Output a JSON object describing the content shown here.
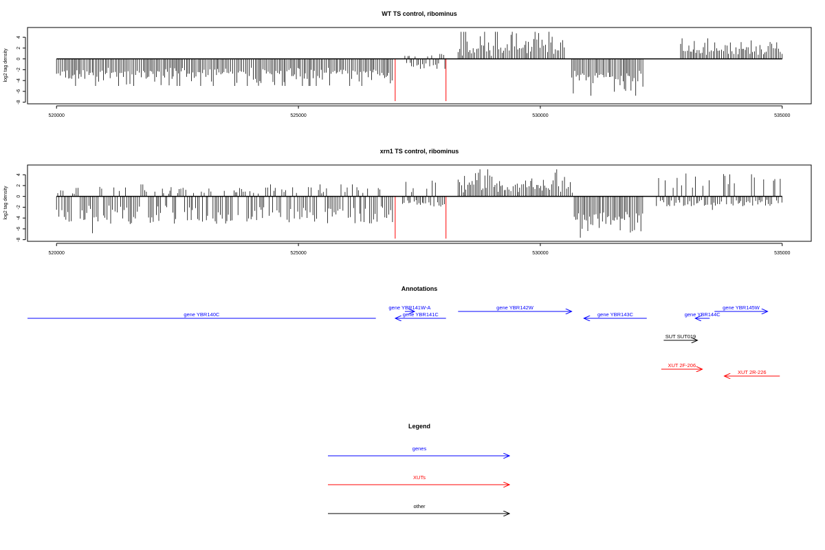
{
  "chart_data": [
    {
      "type": "bar",
      "title": "WT TS control, ribominus",
      "xlabel": "",
      "ylabel": "log2 tag density",
      "xlim": [
        519400,
        535600
      ],
      "ylim": [
        -8.3,
        5.8
      ],
      "yticks": [
        -8,
        -6,
        -4,
        -2,
        0,
        2,
        4
      ],
      "xticks": [
        520000,
        525000,
        530000,
        535000
      ],
      "baseline": [
        520000,
        535000
      ],
      "series": [
        {
          "color": "#000000",
          "segments": [
            {
              "x0": 520000,
              "x1": 526950,
              "min": -5.0,
              "max": -1.5
            },
            {
              "x0": 527200,
              "x1": 528050,
              "min": -2.5,
              "max": 1.2
            },
            {
              "x0": 528300,
              "x1": 530500,
              "min": 0.5,
              "max": 5.0
            },
            {
              "x0": 530650,
              "x1": 532150,
              "min": -6.8,
              "max": -2.0
            },
            {
              "x0": 532900,
              "x1": 535000,
              "min": 0.5,
              "max": 3.8
            }
          ]
        },
        {
          "color": "#ff0000",
          "x": [
            527000,
            528050
          ],
          "values": [
            -7.8,
            -7.8
          ]
        }
      ]
    },
    {
      "type": "bar",
      "title": "xrn1 TS control, ribominus",
      "xlabel": "",
      "ylabel": "log2 tag density",
      "xlim": [
        519400,
        535600
      ],
      "ylim": [
        -8.3,
        5.8
      ],
      "yticks": [
        -8,
        -6,
        -4,
        -2,
        0,
        2,
        4
      ],
      "xticks": [
        520000,
        525000,
        530000,
        535000
      ],
      "baseline": [
        520000,
        535000
      ],
      "series": [
        {
          "color": "#000000",
          "segments": [
            {
              "x0": 520000,
              "x1": 526950,
              "min": -6.8,
              "max": 2.2
            },
            {
              "x0": 527150,
              "x1": 528050,
              "min": -2.5,
              "max": 4.0
            },
            {
              "x0": 528300,
              "x1": 530700,
              "min": 0.5,
              "max": 5.0
            },
            {
              "x0": 530700,
              "x1": 532150,
              "min": -7.8,
              "max": -2.5
            },
            {
              "x0": 532400,
              "x1": 535000,
              "min": -2.5,
              "max": 5.3
            }
          ]
        },
        {
          "color": "#ff0000",
          "x": [
            527000,
            528050
          ],
          "values": [
            -7.8,
            -7.8
          ]
        }
      ]
    }
  ],
  "annotations": {
    "title": "Annotations",
    "items": [
      {
        "label": "gene YBR140C",
        "color": "#0000ff",
        "x0": 519400,
        "x1": 526600,
        "direction": "none",
        "row": 2
      },
      {
        "label": "gene YBR141W-A",
        "color": "#0000ff",
        "x0": 527200,
        "x1": 527400,
        "direction": "right",
        "row": 1
      },
      {
        "label": "gene YBR141C",
        "color": "#0000ff",
        "x0": 527000,
        "x1": 528050,
        "direction": "left",
        "row": 2
      },
      {
        "label": "gene YBR142W",
        "color": "#0000ff",
        "x0": 528300,
        "x1": 530650,
        "direction": "right",
        "row": 1
      },
      {
        "label": "gene YBR143C",
        "color": "#0000ff",
        "x0": 530900,
        "x1": 532200,
        "direction": "left",
        "row": 2
      },
      {
        "label": "gene YBR144C",
        "color": "#0000ff",
        "x0": 533200,
        "x1": 533500,
        "direction": "left",
        "row": 2
      },
      {
        "label": "gene YBR145W",
        "color": "#0000ff",
        "x0": 533600,
        "x1": 534700,
        "direction": "right",
        "row": 1
      },
      {
        "label": "SUT SUT019",
        "color": "#000000",
        "x0": 532550,
        "x1": 533250,
        "direction": "right",
        "row": 3
      },
      {
        "label": "XUT 2F-206",
        "color": "#ff0000",
        "x0": 532500,
        "x1": 533350,
        "direction": "right",
        "row": 4
      },
      {
        "label": "XUT 2R-226",
        "color": "#ff0000",
        "x0": 533800,
        "x1": 534950,
        "direction": "left",
        "row": 5
      }
    ]
  },
  "legend": {
    "title": "Legend",
    "items": [
      {
        "label": "genes",
        "color": "#0000ff"
      },
      {
        "label": "XUTs",
        "color": "#ff0000"
      },
      {
        "label": "other",
        "color": "#000000"
      }
    ]
  }
}
